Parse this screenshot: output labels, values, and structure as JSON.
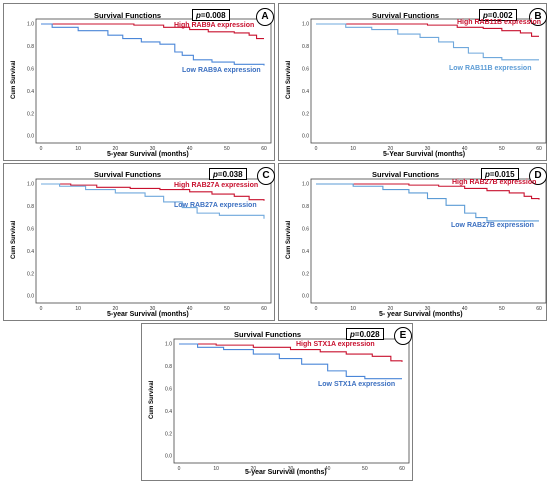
{
  "chart_data": [
    {
      "type": "line",
      "panel": "A",
      "title": "Survival Functions",
      "p_prefix": "p",
      "p_value": "=0.008",
      "xlabel": "5-year Survival (months)",
      "ylabel": "Cum Survival",
      "xlim": [
        0,
        60
      ],
      "ylim": [
        0.0,
        1.0
      ],
      "x_ticks": [
        0,
        10,
        20,
        30,
        40,
        50,
        60
      ],
      "y_ticks": [
        "0.0",
        "0.2",
        "0.4",
        "0.6",
        "0.8",
        "1.0"
      ],
      "series": [
        {
          "name": "High RAB9A expression",
          "color": "#c8102e",
          "x": [
            0,
            18,
            25,
            33,
            40,
            45,
            52,
            56,
            58,
            60
          ],
          "y": [
            1.0,
            1.0,
            0.99,
            0.97,
            0.95,
            0.93,
            0.92,
            0.9,
            0.87,
            0.87
          ]
        },
        {
          "name": "Low RAB9A expression",
          "color": "#4a86d8",
          "x": [
            0,
            3,
            10,
            18,
            22,
            27,
            32,
            36,
            38,
            41,
            46,
            52,
            60
          ],
          "y": [
            1.0,
            0.97,
            0.94,
            0.9,
            0.87,
            0.84,
            0.82,
            0.75,
            0.72,
            0.68,
            0.66,
            0.64,
            0.63
          ]
        }
      ]
    },
    {
      "type": "line",
      "panel": "B",
      "title": "Survival Functions",
      "p_prefix": "p",
      "p_value": "=0.002",
      "xlabel": "5-Year Survival (months)",
      "ylabel": "Cum Survival",
      "xlim": [
        0,
        60
      ],
      "ylim": [
        0.0,
        1.0
      ],
      "x_ticks": [
        0,
        10,
        20,
        30,
        40,
        50,
        60
      ],
      "y_ticks": [
        "0.0",
        "0.2",
        "0.4",
        "0.6",
        "0.8",
        "1.0"
      ],
      "series": [
        {
          "name": "High RAB11B expression",
          "color": "#c8102e",
          "x": [
            0,
            20,
            30,
            38,
            45,
            50,
            55,
            58,
            60
          ],
          "y": [
            1.0,
            1.0,
            0.99,
            0.97,
            0.96,
            0.94,
            0.92,
            0.89,
            0.89
          ]
        },
        {
          "name": "Low RAB11B expression",
          "color": "#6fa8dc",
          "x": [
            0,
            8,
            15,
            22,
            28,
            33,
            37,
            41,
            45,
            50,
            60
          ],
          "y": [
            1.0,
            0.97,
            0.95,
            0.91,
            0.88,
            0.84,
            0.79,
            0.74,
            0.7,
            0.68,
            0.68
          ]
        }
      ]
    },
    {
      "type": "line",
      "panel": "C",
      "title": "Survival Functions",
      "p_prefix": "p",
      "p_value": "=0.038",
      "xlabel": "5-year Survival (months)",
      "ylabel": "Cum Survival",
      "xlim": [
        0,
        60
      ],
      "ylim": [
        0.0,
        1.0
      ],
      "x_ticks": [
        0,
        10,
        20,
        30,
        40,
        50,
        60
      ],
      "y_ticks": [
        "0.0",
        "0.2",
        "0.4",
        "0.6",
        "0.8",
        "1.0"
      ],
      "series": [
        {
          "name": "High RAB27A expression",
          "color": "#c8102e",
          "x": [
            0,
            8,
            15,
            24,
            32,
            40,
            46,
            52,
            56,
            60
          ],
          "y": [
            1.0,
            0.99,
            0.97,
            0.96,
            0.95,
            0.93,
            0.91,
            0.89,
            0.86,
            0.85
          ]
        },
        {
          "name": "Low RAB27A expression",
          "color": "#6fa8dc",
          "x": [
            0,
            5,
            12,
            20,
            28,
            33,
            38,
            42,
            48,
            55,
            60
          ],
          "y": [
            1.0,
            0.98,
            0.95,
            0.92,
            0.89,
            0.84,
            0.79,
            0.74,
            0.72,
            0.72,
            0.69
          ]
        }
      ]
    },
    {
      "type": "line",
      "panel": "D",
      "title": "Survival Functions",
      "p_prefix": "p",
      "p_value": "=0.015",
      "xlabel": "5- year Survival (months)",
      "ylabel": "Cum Survival",
      "xlim": [
        0,
        60
      ],
      "ylim": [
        0.0,
        1.0
      ],
      "x_ticks": [
        0,
        10,
        20,
        30,
        40,
        50,
        60
      ],
      "y_ticks": [
        "0.0",
        "0.2",
        "0.4",
        "0.6",
        "0.8",
        "1.0"
      ],
      "series": [
        {
          "name": "High RAB27B expression",
          "color": "#c8102e",
          "x": [
            0,
            15,
            25,
            33,
            40,
            46,
            52,
            56,
            58,
            60
          ],
          "y": [
            1.0,
            1.0,
            0.99,
            0.98,
            0.96,
            0.94,
            0.92,
            0.89,
            0.87,
            0.86
          ]
        },
        {
          "name": "Low RAB27B expression",
          "color": "#5b9bd5",
          "x": [
            0,
            10,
            18,
            25,
            30,
            35,
            40,
            43,
            46,
            60
          ],
          "y": [
            1.0,
            0.98,
            0.95,
            0.92,
            0.87,
            0.81,
            0.74,
            0.7,
            0.67,
            0.67
          ]
        }
      ]
    },
    {
      "type": "line",
      "panel": "E",
      "title": "Survival Functions",
      "p_prefix": "p",
      "p_value": "=0.028",
      "xlabel": "5-year Survival (months)",
      "ylabel": "Cum Survival",
      "xlim": [
        0,
        60
      ],
      "ylim": [
        0.0,
        1.0
      ],
      "x_ticks": [
        0,
        10,
        20,
        30,
        40,
        50,
        60
      ],
      "y_ticks": [
        "0.0",
        "0.2",
        "0.4",
        "0.6",
        "0.8",
        "1.0"
      ],
      "series": [
        {
          "name": "High STX1A expression",
          "color": "#c8102e",
          "x": [
            0,
            10,
            20,
            30,
            38,
            45,
            52,
            57,
            60
          ],
          "y": [
            1.0,
            0.99,
            0.97,
            0.95,
            0.93,
            0.91,
            0.89,
            0.85,
            0.84
          ]
        },
        {
          "name": "Low STX1A expression",
          "color": "#4a86d8",
          "x": [
            0,
            5,
            12,
            20,
            27,
            33,
            40,
            45,
            50,
            60
          ],
          "y": [
            1.0,
            0.97,
            0.95,
            0.91,
            0.87,
            0.82,
            0.76,
            0.71,
            0.69,
            0.69
          ]
        }
      ]
    }
  ]
}
